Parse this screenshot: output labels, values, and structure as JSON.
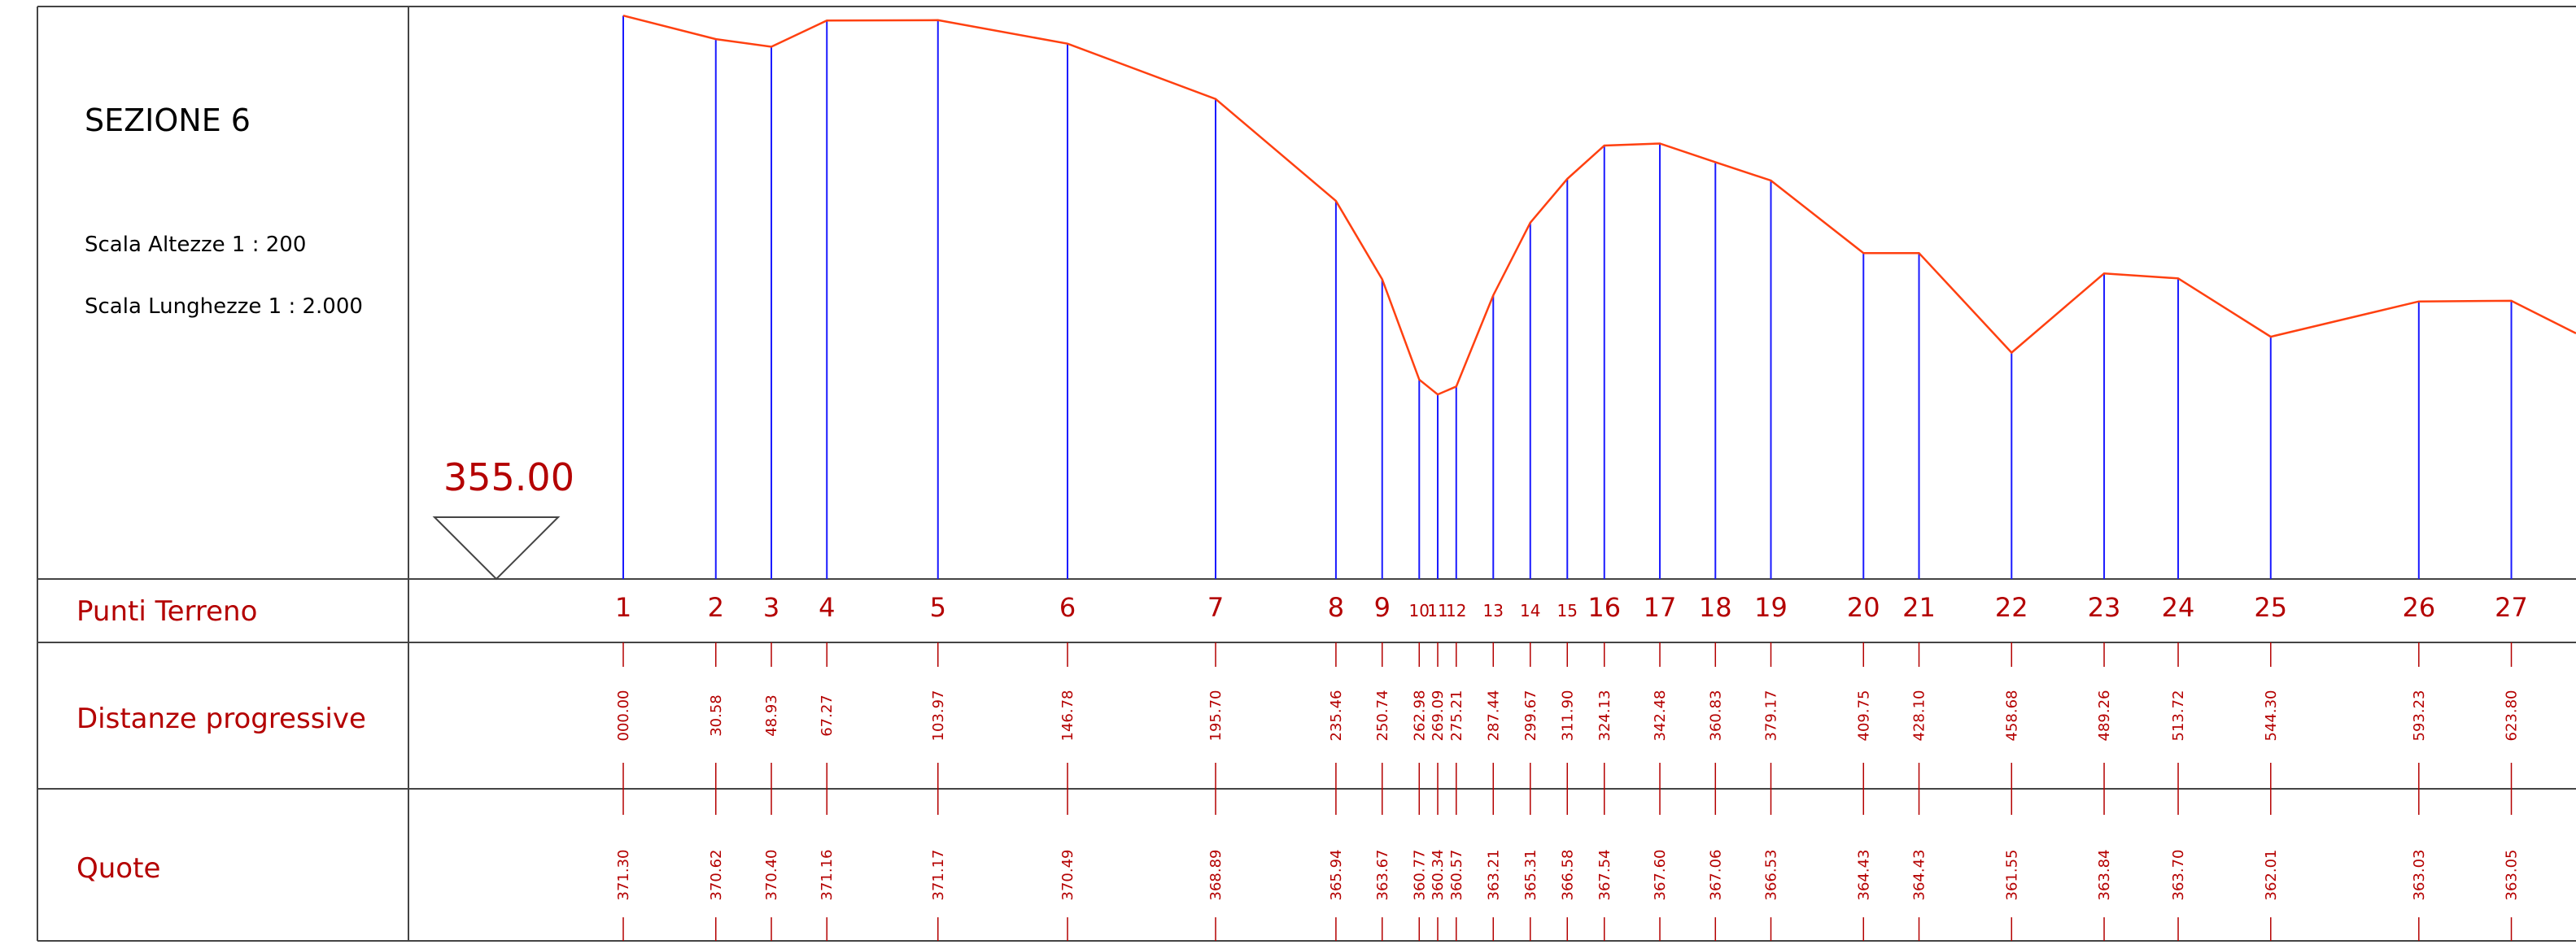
{
  "section": {
    "title": "SEZIONE 6",
    "scale_heights": "Scala Altezze 1 : 200",
    "scale_lengths": "Scala Lunghezze 1 : 2.000"
  },
  "datum": {
    "value_label": "355.00",
    "value": 355.0
  },
  "rows": {
    "points_label": "Punti Terreno",
    "distances_label": "Distanze progressive",
    "elevations_label": "Quote"
  },
  "colors": {
    "profile_line": "#ff4010",
    "verticals": "#1a1aff",
    "labels": "#b40000",
    "frame": "#444444"
  },
  "chart_data": {
    "type": "line",
    "title": "SEZIONE 6",
    "xlabel": "Distanze progressive",
    "ylabel": "Quote",
    "y_datum": 355.0,
    "points": [
      {
        "n": "1",
        "dist": "000.00",
        "elev": "371.30"
      },
      {
        "n": "2",
        "dist": "30.58",
        "elev": "370.62"
      },
      {
        "n": "3",
        "dist": "48.93",
        "elev": "370.40"
      },
      {
        "n": "4",
        "dist": "67.27",
        "elev": "371.16"
      },
      {
        "n": "5",
        "dist": "103.97",
        "elev": "371.17"
      },
      {
        "n": "6",
        "dist": "146.78",
        "elev": "370.49"
      },
      {
        "n": "7",
        "dist": "195.70",
        "elev": "368.89"
      },
      {
        "n": "8",
        "dist": "235.46",
        "elev": "365.94"
      },
      {
        "n": "9",
        "dist": "250.74",
        "elev": "363.67"
      },
      {
        "n": "10",
        "dist": "262.98",
        "elev": "360.77"
      },
      {
        "n": "11",
        "dist": "269.09",
        "elev": "360.34"
      },
      {
        "n": "12",
        "dist": "275.21",
        "elev": "360.57"
      },
      {
        "n": "13",
        "dist": "287.44",
        "elev": "363.21"
      },
      {
        "n": "14",
        "dist": "299.67",
        "elev": "365.31"
      },
      {
        "n": "15",
        "dist": "311.90",
        "elev": "366.58"
      },
      {
        "n": "16",
        "dist": "324.13",
        "elev": "367.54"
      },
      {
        "n": "17",
        "dist": "342.48",
        "elev": "367.60"
      },
      {
        "n": "18",
        "dist": "360.83",
        "elev": "367.06"
      },
      {
        "n": "19",
        "dist": "379.17",
        "elev": "366.53"
      },
      {
        "n": "20",
        "dist": "409.75",
        "elev": "364.43"
      },
      {
        "n": "21",
        "dist": "428.10",
        "elev": "364.43"
      },
      {
        "n": "22",
        "dist": "458.68",
        "elev": "361.55"
      },
      {
        "n": "23",
        "dist": "489.26",
        "elev": "363.84"
      },
      {
        "n": "24",
        "dist": "513.72",
        "elev": "363.70"
      },
      {
        "n": "25",
        "dist": "544.30",
        "elev": "362.01"
      },
      {
        "n": "26",
        "dist": "593.23",
        "elev": "363.03"
      },
      {
        "n": "27",
        "dist": "623.80",
        "elev": "363.05"
      }
    ]
  }
}
